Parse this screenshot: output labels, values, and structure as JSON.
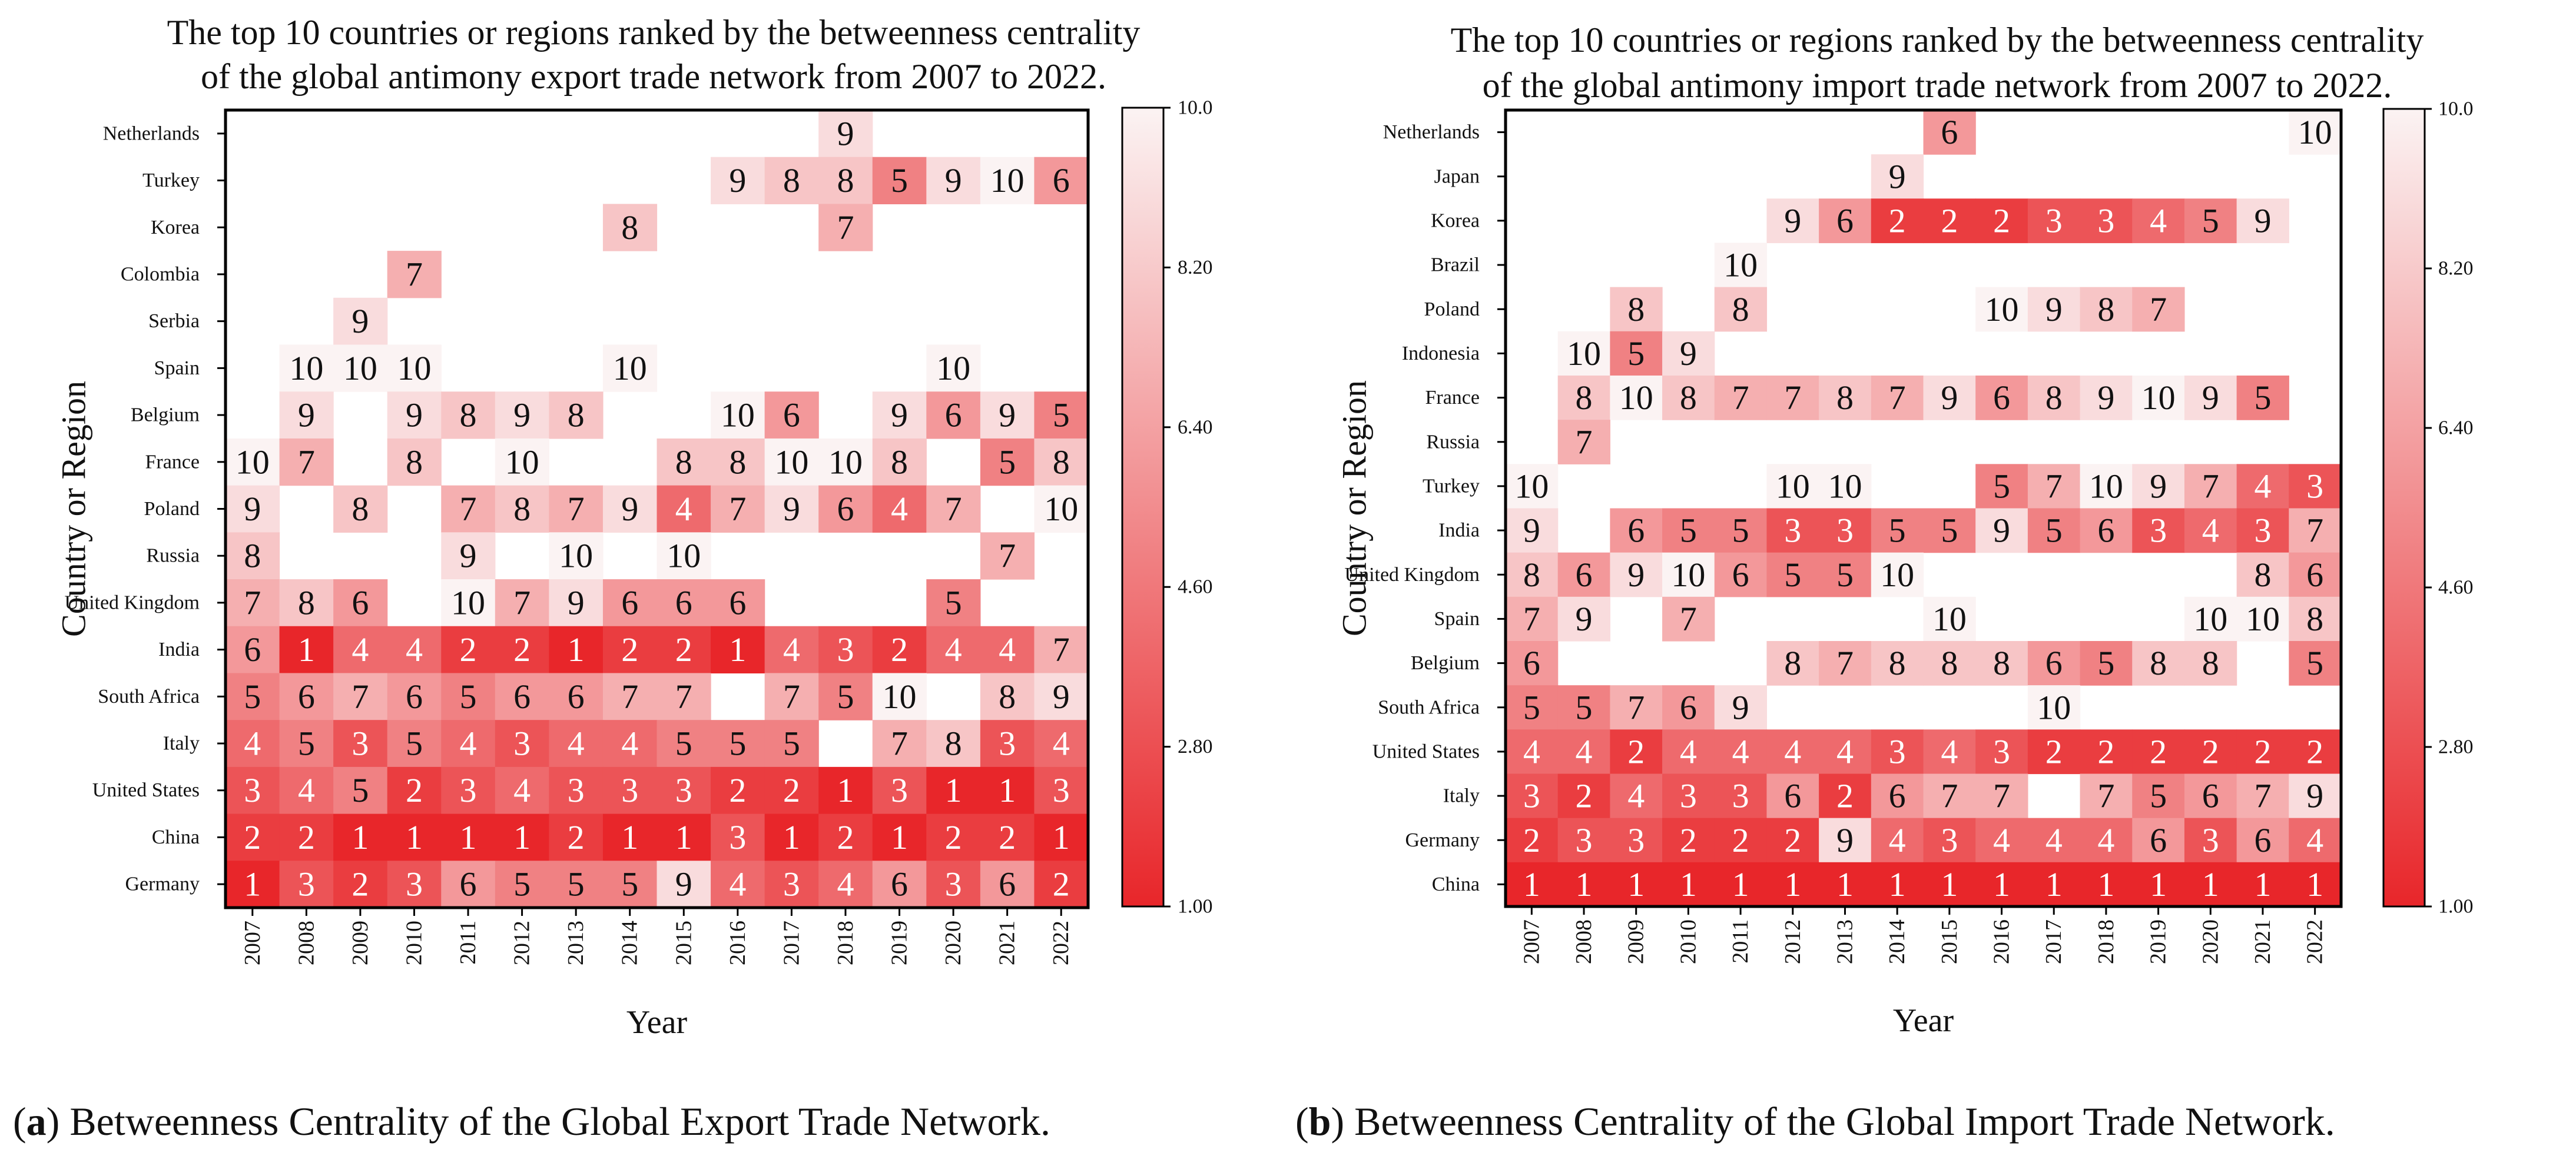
{
  "chart_data": [
    {
      "type": "heatmap",
      "title": "The top 10 countries or regions ranked by the betweenness centrality",
      "subtitle": "of the global antimony export trade network from 2007 to 2022.",
      "xlabel": "Year",
      "ylabel": "Country or Region",
      "caption_letter": "a",
      "caption": "Betweenness Centrality of the Global Export Trade Network.",
      "x": [
        "2007",
        "2008",
        "2009",
        "2010",
        "2011",
        "2012",
        "2013",
        "2014",
        "2015",
        "2016",
        "2017",
        "2018",
        "2019",
        "2020",
        "2021",
        "2022"
      ],
      "y": [
        "Netherlands",
        "Turkey",
        "Korea",
        "Colombia",
        "Serbia",
        "Spain",
        "Belgium",
        "France",
        "Poland",
        "Russia",
        "United Kingdom",
        "India",
        "South Africa",
        "Italy",
        "United States",
        "China",
        "Germany"
      ],
      "values": [
        [
          null,
          null,
          null,
          null,
          null,
          null,
          null,
          null,
          null,
          null,
          null,
          9,
          null,
          null,
          null,
          null
        ],
        [
          null,
          null,
          null,
          null,
          null,
          null,
          null,
          null,
          null,
          9,
          8,
          8,
          5,
          9,
          10,
          6
        ],
        [
          null,
          null,
          null,
          null,
          null,
          null,
          null,
          8,
          null,
          null,
          null,
          7,
          null,
          null,
          null,
          null
        ],
        [
          null,
          null,
          null,
          7,
          null,
          null,
          null,
          null,
          null,
          null,
          null,
          null,
          null,
          null,
          null,
          null
        ],
        [
          null,
          null,
          9,
          null,
          null,
          null,
          null,
          null,
          null,
          null,
          null,
          null,
          null,
          null,
          null,
          null
        ],
        [
          null,
          10,
          10,
          10,
          null,
          null,
          null,
          10,
          null,
          null,
          null,
          null,
          null,
          10,
          null,
          null
        ],
        [
          null,
          9,
          null,
          9,
          8,
          9,
          8,
          null,
          null,
          10,
          6,
          null,
          9,
          6,
          9,
          5
        ],
        [
          10,
          7,
          null,
          8,
          null,
          10,
          null,
          null,
          8,
          8,
          10,
          10,
          8,
          null,
          5,
          8
        ],
        [
          9,
          null,
          8,
          null,
          7,
          8,
          7,
          9,
          4,
          7,
          9,
          6,
          4,
          7,
          null,
          10
        ],
        [
          8,
          null,
          null,
          null,
          9,
          null,
          10,
          null,
          10,
          null,
          null,
          null,
          null,
          null,
          7,
          null
        ],
        [
          7,
          8,
          6,
          null,
          10,
          7,
          9,
          6,
          6,
          6,
          null,
          null,
          null,
          5,
          null,
          null
        ],
        [
          6,
          1,
          4,
          4,
          2,
          2,
          1,
          2,
          2,
          1,
          4,
          3,
          2,
          4,
          4,
          7
        ],
        [
          5,
          6,
          7,
          6,
          5,
          6,
          6,
          7,
          7,
          null,
          7,
          5,
          10,
          null,
          8,
          9
        ],
        [
          4,
          5,
          3,
          5,
          4,
          3,
          4,
          4,
          5,
          5,
          5,
          null,
          7,
          8,
          3,
          4
        ],
        [
          3,
          4,
          5,
          2,
          3,
          4,
          3,
          3,
          3,
          2,
          2,
          1,
          3,
          1,
          1,
          3
        ],
        [
          2,
          2,
          1,
          1,
          1,
          1,
          2,
          1,
          1,
          3,
          1,
          2,
          1,
          2,
          2,
          1
        ],
        [
          1,
          3,
          2,
          3,
          6,
          5,
          5,
          5,
          9,
          4,
          3,
          4,
          6,
          3,
          6,
          2
        ]
      ],
      "colorbar": {
        "min": 1.0,
        "max": 10.0,
        "ticks": [
          "1.00",
          "2.80",
          "4.60",
          "6.40",
          "8.20",
          "10.0"
        ]
      },
      "colors": {
        "low": "#e8262a",
        "high": "#fbf3f3"
      }
    },
    {
      "type": "heatmap",
      "title": "The top 10 countries or regions ranked by the betweenness centrality",
      "subtitle": "of the global antimony import trade network from 2007 to 2022.",
      "xlabel": "Year",
      "ylabel": "Country or Region",
      "caption_letter": "b",
      "caption": "Betweenness Centrality of the Global Import Trade Network.",
      "x": [
        "2007",
        "2008",
        "2009",
        "2010",
        "2011",
        "2012",
        "2013",
        "2014",
        "2015",
        "2016",
        "2017",
        "2018",
        "2019",
        "2020",
        "2021",
        "2022"
      ],
      "y": [
        "Netherlands",
        "Japan",
        "Korea",
        "Brazil",
        "Poland",
        "Indonesia",
        "France",
        "Russia",
        "Turkey",
        "India",
        "United Kingdom",
        "Spain",
        "Belgium",
        "South Africa",
        "United States",
        "Italy",
        "Germany",
        "China"
      ],
      "values": [
        [
          null,
          null,
          null,
          null,
          null,
          null,
          null,
          null,
          6,
          null,
          null,
          null,
          null,
          null,
          null,
          10
        ],
        [
          null,
          null,
          null,
          null,
          null,
          null,
          null,
          9,
          null,
          null,
          null,
          null,
          null,
          null,
          null,
          null
        ],
        [
          null,
          null,
          null,
          null,
          null,
          9,
          6,
          2,
          2,
          2,
          3,
          3,
          4,
          5,
          9,
          null
        ],
        [
          null,
          null,
          null,
          null,
          10,
          null,
          null,
          null,
          null,
          null,
          null,
          null,
          null,
          null,
          null,
          null
        ],
        [
          null,
          null,
          8,
          null,
          8,
          null,
          null,
          null,
          null,
          10,
          9,
          8,
          7,
          null,
          null,
          null
        ],
        [
          null,
          10,
          5,
          9,
          null,
          null,
          null,
          null,
          null,
          null,
          null,
          null,
          null,
          null,
          null,
          null
        ],
        [
          null,
          8,
          10,
          8,
          7,
          7,
          8,
          7,
          9,
          6,
          8,
          9,
          10,
          9,
          5,
          null
        ],
        [
          null,
          7,
          null,
          null,
          null,
          null,
          null,
          null,
          null,
          null,
          null,
          null,
          null,
          null,
          null,
          null
        ],
        [
          10,
          null,
          null,
          null,
          null,
          10,
          10,
          null,
          null,
          5,
          7,
          10,
          9,
          7,
          4,
          3
        ],
        [
          9,
          null,
          6,
          5,
          5,
          3,
          3,
          5,
          5,
          9,
          5,
          6,
          3,
          4,
          3,
          7
        ],
        [
          8,
          6,
          9,
          10,
          6,
          5,
          5,
          10,
          null,
          null,
          null,
          null,
          null,
          null,
          8,
          6
        ],
        [
          7,
          9,
          null,
          7,
          null,
          null,
          null,
          null,
          10,
          null,
          null,
          null,
          null,
          10,
          10,
          8
        ],
        [
          6,
          null,
          null,
          null,
          null,
          8,
          7,
          8,
          8,
          8,
          6,
          5,
          8,
          8,
          null,
          5
        ],
        [
          5,
          5,
          7,
          6,
          9,
          null,
          null,
          null,
          null,
          null,
          10,
          null,
          null,
          null,
          null,
          null
        ],
        [
          4,
          4,
          2,
          4,
          4,
          4,
          4,
          3,
          4,
          3,
          2,
          2,
          2,
          2,
          2,
          2
        ],
        [
          3,
          2,
          4,
          3,
          3,
          6,
          2,
          6,
          7,
          7,
          null,
          7,
          5,
          6,
          7,
          9
        ],
        [
          2,
          3,
          3,
          2,
          2,
          2,
          9,
          4,
          3,
          4,
          4,
          4,
          6,
          3,
          6,
          4
        ],
        [
          1,
          1,
          1,
          1,
          1,
          1,
          1,
          1,
          1,
          1,
          1,
          1,
          1,
          1,
          1,
          1
        ]
      ],
      "colorbar": {
        "min": 1.0,
        "max": 10.0,
        "ticks": [
          "1.00",
          "2.80",
          "4.60",
          "6.40",
          "8.20",
          "10.0"
        ]
      },
      "colors": {
        "low": "#e8262a",
        "high": "#fbf3f3"
      }
    }
  ]
}
